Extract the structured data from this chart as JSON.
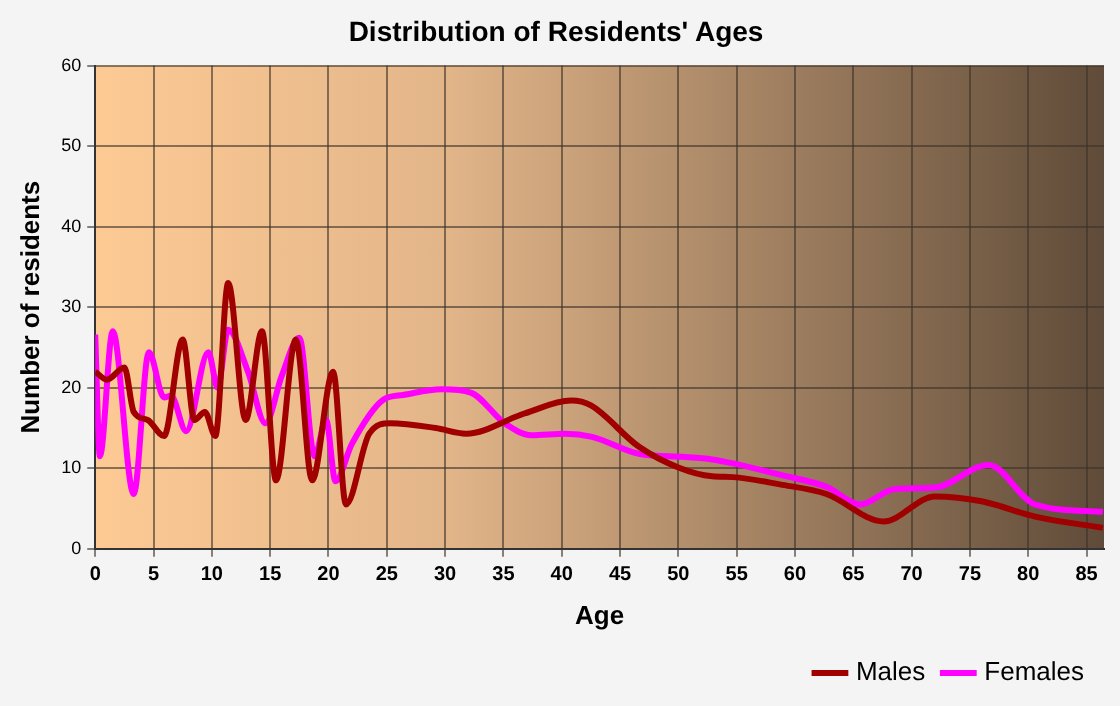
{
  "chart_data": {
    "type": "line",
    "title": "Distribution of Residents' Ages",
    "xlabel": "Age",
    "ylabel": "Number of residents",
    "xlim": [
      0,
      86.5
    ],
    "xticks": [
      0,
      5,
      10,
      15,
      20,
      25,
      30,
      35,
      40,
      45,
      50,
      55,
      60,
      65,
      70,
      75,
      80,
      85
    ],
    "ylim": [
      0,
      60
    ],
    "yticks": [
      0,
      10,
      20,
      30,
      40,
      50,
      60
    ],
    "grid": true,
    "legend": "bottom right",
    "marker": "none",
    "line_style": "solid",
    "series": [
      {
        "name": "Males",
        "color": "#a00000",
        "x": [
          0,
          1,
          2.5,
          3.3,
          4.5,
          5.9,
          7.5,
          8.5,
          9.4,
          10.3,
          11.4,
          12.9,
          14.3,
          15.5,
          17.2,
          18.6,
          20.4,
          21.5,
          23.5,
          25.3,
          29.2,
          31.8,
          36.8,
          40.8,
          42.5,
          46.6,
          50,
          52.9,
          54.7,
          58.7,
          62.7,
          67.6,
          72,
          76,
          80.6,
          86.4
        ],
        "values": [
          22,
          21,
          22.5,
          17,
          16,
          14,
          26,
          16,
          17,
          14,
          33,
          16,
          27,
          8.5,
          26,
          8.5,
          22,
          5.5,
          14.3,
          15.6,
          15,
          14.3,
          16.8,
          18.4,
          17.8,
          12.7,
          10.1,
          9,
          8.9,
          8,
          6.8,
          3.4,
          6.5,
          5.9,
          4,
          2.6
        ]
      },
      {
        "name": "Females",
        "color": "#ff00ff",
        "x": [
          0,
          0.4,
          1.5,
          3.3,
          4.6,
          5.9,
          6.5,
          7.8,
          9.7,
          10.5,
          11.4,
          13.1,
          14.6,
          16,
          17.5,
          18.8,
          19.8,
          20.6,
          22,
          24.7,
          26.4,
          29.7,
          32.2,
          35.1,
          37.4,
          40.3,
          42.6,
          46.6,
          50.6,
          52.9,
          54.7,
          58.7,
          62.7,
          65.6,
          68.5,
          72,
          76.6,
          80.6,
          86.4
        ],
        "values": [
          26.6,
          11.5,
          27,
          6.8,
          24.4,
          18.8,
          19,
          14.6,
          24.4,
          20,
          27.2,
          22,
          15.6,
          21.5,
          26.2,
          11.5,
          16,
          8.4,
          13,
          18.5,
          19.1,
          19.8,
          19.4,
          15.6,
          14.1,
          14.3,
          13.9,
          11.8,
          11.4,
          11.1,
          10.6,
          9.2,
          7.7,
          5.5,
          7.4,
          7.6,
          10.4,
          5.5,
          4.6
        ]
      }
    ]
  }
}
